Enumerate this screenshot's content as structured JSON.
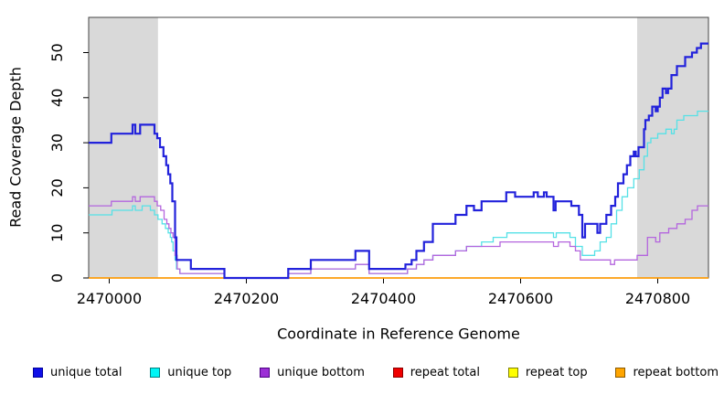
{
  "figure": {
    "background": "#FFFFFF"
  },
  "chart_data": {
    "type": "line",
    "subtype": "step",
    "title": "",
    "xlabel": "Coordinate in Reference Genome",
    "ylabel": "Read Coverage Depth",
    "xlim": [
      2469970,
      2470874
    ],
    "ylim": [
      0,
      57.8
    ],
    "x_ticks": [
      "2470000",
      "2470200",
      "2470400",
      "2470600",
      "2470800"
    ],
    "x_tick_values": [
      2470000,
      2470200,
      2470400,
      2470600,
      2470800
    ],
    "y_ticks": [
      "0",
      "10",
      "20",
      "30",
      "40",
      "50"
    ],
    "y_tick_values": [
      0,
      10,
      20,
      30,
      40,
      50
    ],
    "grid": false,
    "legend_position": "bottom",
    "box_color": "#444444",
    "shaded_bands": [
      {
        "from": 2469970,
        "to": 2470071,
        "color": "#D9D9D9"
      },
      {
        "from": 2470770,
        "to": 2470874,
        "color": "#D9D9D9"
      }
    ],
    "series": [
      {
        "name": "repeat total",
        "color": "#E00000",
        "width": 1.2,
        "points": [
          [
            2469970,
            0
          ],
          [
            2470874,
            0
          ]
        ]
      },
      {
        "name": "repeat top",
        "color": "#F2F200",
        "width": 1.2,
        "points": [
          [
            2469970,
            0
          ],
          [
            2470874,
            0
          ]
        ]
      },
      {
        "name": "repeat bottom",
        "color": "#FF9D0A",
        "width": 1.6,
        "points": [
          [
            2469970,
            0
          ],
          [
            2470874,
            0
          ]
        ]
      },
      {
        "name": "unique top",
        "color": "#55E1E6",
        "width": 1.3,
        "points": [
          [
            2469970,
            14
          ],
          [
            2470004,
            15
          ],
          [
            2470034,
            16
          ],
          [
            2470038,
            15
          ],
          [
            2470048,
            16
          ],
          [
            2470060,
            15
          ],
          [
            2470066,
            14
          ],
          [
            2470071,
            13
          ],
          [
            2470077,
            12
          ],
          [
            2470082,
            11
          ],
          [
            2470086,
            10
          ],
          [
            2470089,
            9
          ],
          [
            2470091,
            8
          ],
          [
            2470093,
            6
          ],
          [
            2470096,
            4
          ],
          [
            2470098,
            2
          ],
          [
            2470103,
            1
          ],
          [
            2470168,
            0
          ],
          [
            2470261,
            1
          ],
          [
            2470294,
            2
          ],
          [
            2470359,
            3
          ],
          [
            2470379,
            1
          ],
          [
            2470435,
            2
          ],
          [
            2470448,
            3
          ],
          [
            2470459,
            4
          ],
          [
            2470472,
            5
          ],
          [
            2470505,
            6
          ],
          [
            2470521,
            7
          ],
          [
            2470543,
            8
          ],
          [
            2470560,
            9
          ],
          [
            2470580,
            10
          ],
          [
            2470648,
            9
          ],
          [
            2470652,
            10
          ],
          [
            2470672,
            9
          ],
          [
            2470680,
            7
          ],
          [
            2470690,
            5
          ],
          [
            2470708,
            6
          ],
          [
            2470716,
            8
          ],
          [
            2470725,
            9
          ],
          [
            2470732,
            12
          ],
          [
            2470740,
            15
          ],
          [
            2470748,
            18
          ],
          [
            2470756,
            20
          ],
          [
            2470765,
            22
          ],
          [
            2470773,
            24
          ],
          [
            2470780,
            27
          ],
          [
            2470785,
            30
          ],
          [
            2470790,
            31
          ],
          [
            2470800,
            32
          ],
          [
            2470812,
            33
          ],
          [
            2470820,
            32
          ],
          [
            2470824,
            33
          ],
          [
            2470828,
            35
          ],
          [
            2470838,
            36
          ],
          [
            2470858,
            37
          ],
          [
            2470874,
            37
          ]
        ]
      },
      {
        "name": "unique bottom",
        "color": "#B465DE",
        "width": 1.3,
        "points": [
          [
            2469970,
            16
          ],
          [
            2470003,
            17
          ],
          [
            2470034,
            18
          ],
          [
            2470038,
            17
          ],
          [
            2470045,
            18
          ],
          [
            2470066,
            17
          ],
          [
            2470070,
            16
          ],
          [
            2470075,
            15
          ],
          [
            2470080,
            13
          ],
          [
            2470084,
            12
          ],
          [
            2470087,
            11
          ],
          [
            2470090,
            10
          ],
          [
            2470093,
            9
          ],
          [
            2470096,
            5
          ],
          [
            2470099,
            2
          ],
          [
            2470103,
            1
          ],
          [
            2470168,
            0
          ],
          [
            2470261,
            1
          ],
          [
            2470294,
            2
          ],
          [
            2470359,
            3
          ],
          [
            2470379,
            1
          ],
          [
            2470435,
            2
          ],
          [
            2470448,
            3
          ],
          [
            2470459,
            4
          ],
          [
            2470472,
            5
          ],
          [
            2470505,
            6
          ],
          [
            2470521,
            7
          ],
          [
            2470570,
            8
          ],
          [
            2470648,
            7
          ],
          [
            2470655,
            8
          ],
          [
            2470672,
            7
          ],
          [
            2470680,
            6
          ],
          [
            2470687,
            4
          ],
          [
            2470731,
            3
          ],
          [
            2470737,
            4
          ],
          [
            2470770,
            5
          ],
          [
            2470785,
            9
          ],
          [
            2470797,
            8
          ],
          [
            2470803,
            10
          ],
          [
            2470816,
            11
          ],
          [
            2470828,
            12
          ],
          [
            2470840,
            13
          ],
          [
            2470850,
            15
          ],
          [
            2470858,
            16
          ],
          [
            2470874,
            16
          ]
        ]
      },
      {
        "name": "unique total",
        "color": "#2222DB",
        "width": 2.2,
        "points": [
          [
            2469970,
            30
          ],
          [
            2470003,
            32
          ],
          [
            2470034,
            34
          ],
          [
            2470038,
            32
          ],
          [
            2470045,
            34
          ],
          [
            2470066,
            32
          ],
          [
            2470070,
            31
          ],
          [
            2470074,
            29
          ],
          [
            2470079,
            27
          ],
          [
            2470083,
            25
          ],
          [
            2470086,
            23
          ],
          [
            2470089,
            21
          ],
          [
            2470092,
            17
          ],
          [
            2470096,
            9
          ],
          [
            2470098,
            4
          ],
          [
            2470119,
            2
          ],
          [
            2470168,
            0
          ],
          [
            2470261,
            2
          ],
          [
            2470294,
            4
          ],
          [
            2470359,
            6
          ],
          [
            2470379,
            2
          ],
          [
            2470432,
            3
          ],
          [
            2470441,
            4
          ],
          [
            2470448,
            6
          ],
          [
            2470459,
            8
          ],
          [
            2470472,
            12
          ],
          [
            2470505,
            14
          ],
          [
            2470521,
            16
          ],
          [
            2470532,
            15
          ],
          [
            2470543,
            17
          ],
          [
            2470579,
            19
          ],
          [
            2470592,
            18
          ],
          [
            2470619,
            19
          ],
          [
            2470625,
            18
          ],
          [
            2470634,
            19
          ],
          [
            2470638,
            18
          ],
          [
            2470648,
            15
          ],
          [
            2470651,
            17
          ],
          [
            2470674,
            16
          ],
          [
            2470685,
            14
          ],
          [
            2470690,
            9
          ],
          [
            2470694,
            12
          ],
          [
            2470712,
            10
          ],
          [
            2470716,
            12
          ],
          [
            2470725,
            14
          ],
          [
            2470732,
            16
          ],
          [
            2470738,
            18
          ],
          [
            2470742,
            21
          ],
          [
            2470750,
            23
          ],
          [
            2470755,
            25
          ],
          [
            2470760,
            27
          ],
          [
            2470765,
            28
          ],
          [
            2470768,
            27
          ],
          [
            2470772,
            29
          ],
          [
            2470780,
            33
          ],
          [
            2470782,
            35
          ],
          [
            2470787,
            36
          ],
          [
            2470792,
            38
          ],
          [
            2470797,
            37
          ],
          [
            2470800,
            38
          ],
          [
            2470803,
            40
          ],
          [
            2470807,
            42
          ],
          [
            2470812,
            41
          ],
          [
            2470815,
            42
          ],
          [
            2470820,
            45
          ],
          [
            2470828,
            47
          ],
          [
            2470840,
            49
          ],
          [
            2470850,
            50
          ],
          [
            2470857,
            51
          ],
          [
            2470863,
            52
          ],
          [
            2470874,
            52
          ]
        ]
      }
    ],
    "legend": [
      {
        "label": "unique total",
        "fill": "#0F0FE8",
        "border": "#000099"
      },
      {
        "label": "unique top",
        "fill": "#00F5F5",
        "border": "#008080"
      },
      {
        "label": "unique bottom",
        "fill": "#9C2FD6",
        "border": "#4B0082"
      },
      {
        "label": "repeat total",
        "fill": "#F00000",
        "border": "#8B0000"
      },
      {
        "label": "repeat top",
        "fill": "#FFFF00",
        "border": "#808000"
      },
      {
        "label": "repeat bottom",
        "fill": "#FFA500",
        "border": "#8B5A00"
      }
    ]
  }
}
